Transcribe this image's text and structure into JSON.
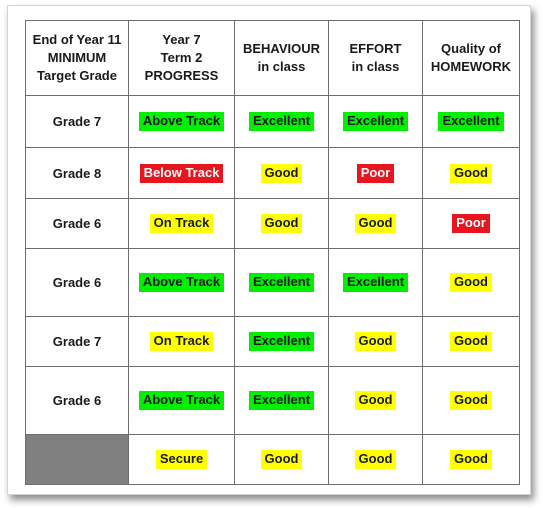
{
  "colors": {
    "green": "#00f000",
    "yellow": "#ffff00",
    "red": "#e8141e",
    "blank_cell": "#808080"
  },
  "table": {
    "headers": [
      [
        "End of Year 11",
        "MINIMUM",
        "Target Grade"
      ],
      [
        "Year 7",
        "Term 2",
        "PROGRESS"
      ],
      [
        "BEHAVIOUR",
        "in class"
      ],
      [
        "EFFORT",
        "in class"
      ],
      [
        "Quality of",
        "HOMEWORK"
      ]
    ],
    "rows": [
      {
        "target": "Grade 7",
        "cells": [
          {
            "text": "Above Track",
            "color": "green"
          },
          {
            "text": "Excellent",
            "color": "green"
          },
          {
            "text": "Excellent",
            "color": "green"
          },
          {
            "text": "Excellent",
            "color": "green"
          }
        ]
      },
      {
        "target": "Grade 8",
        "cells": [
          {
            "text": "Below Track",
            "color": "red"
          },
          {
            "text": "Good",
            "color": "yellow"
          },
          {
            "text": "Poor",
            "color": "red"
          },
          {
            "text": "Good",
            "color": "yellow"
          }
        ]
      },
      {
        "target": "Grade 6",
        "cells": [
          {
            "text": "On Track",
            "color": "yellow"
          },
          {
            "text": "Good",
            "color": "yellow"
          },
          {
            "text": "Good",
            "color": "yellow"
          },
          {
            "text": "Poor",
            "color": "red"
          }
        ]
      },
      {
        "target": "Grade 6",
        "cells": [
          {
            "text": "Above Track",
            "color": "green"
          },
          {
            "text": "Excellent",
            "color": "green"
          },
          {
            "text": "Excellent",
            "color": "green"
          },
          {
            "text": "Good",
            "color": "yellow"
          }
        ]
      },
      {
        "target": "Grade 7",
        "cells": [
          {
            "text": "On Track",
            "color": "yellow"
          },
          {
            "text": "Excellent",
            "color": "green"
          },
          {
            "text": "Good",
            "color": "yellow"
          },
          {
            "text": "Good",
            "color": "yellow"
          }
        ]
      },
      {
        "target": "Grade 6",
        "cells": [
          {
            "text": "Above Track",
            "color": "green"
          },
          {
            "text": "Excellent",
            "color": "green"
          },
          {
            "text": "Good",
            "color": "yellow"
          },
          {
            "text": "Good",
            "color": "yellow"
          }
        ]
      },
      {
        "target": "",
        "blank": true,
        "cells": [
          {
            "text": "Secure",
            "color": "yellow"
          },
          {
            "text": "Good",
            "color": "yellow"
          },
          {
            "text": "Good",
            "color": "yellow"
          },
          {
            "text": "Good",
            "color": "yellow"
          }
        ]
      }
    ]
  }
}
